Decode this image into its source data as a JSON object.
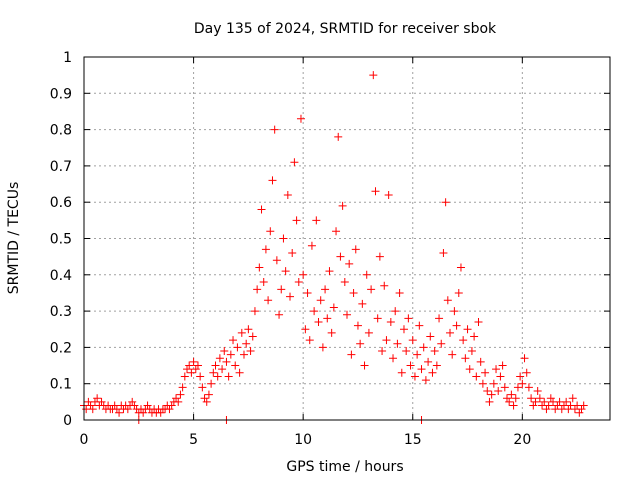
{
  "chart_data": {
    "type": "scatter",
    "title": "Day 135 of 2024, SRMTID for receiver sbok",
    "xlabel": "GPS time / hours",
    "ylabel": "SRMTID / TECUs",
    "xlim": [
      0,
      24
    ],
    "ylim": [
      0,
      1
    ],
    "xticks": [
      0,
      5,
      10,
      15,
      20
    ],
    "yticks": [
      0,
      0.1,
      0.2,
      0.3,
      0.4,
      0.5,
      0.6,
      0.7,
      0.8,
      0.9,
      1
    ],
    "grid": true,
    "marker": "+",
    "color": "#ff0000",
    "series": [
      {
        "name": "SRMTID",
        "points": [
          [
            0.0,
            0.04
          ],
          [
            0.1,
            0.03
          ],
          [
            0.2,
            0.05
          ],
          [
            0.3,
            0.04
          ],
          [
            0.4,
            0.03
          ],
          [
            0.5,
            0.05
          ],
          [
            0.6,
            0.06
          ],
          [
            0.7,
            0.04
          ],
          [
            0.8,
            0.05
          ],
          [
            0.9,
            0.04
          ],
          [
            1.0,
            0.03
          ],
          [
            1.1,
            0.04
          ],
          [
            1.2,
            0.03
          ],
          [
            1.3,
            0.03
          ],
          [
            1.4,
            0.04
          ],
          [
            1.5,
            0.03
          ],
          [
            1.6,
            0.02
          ],
          [
            1.7,
            0.04
          ],
          [
            1.8,
            0.03
          ],
          [
            1.9,
            0.04
          ],
          [
            2.0,
            0.03
          ],
          [
            2.1,
            0.04
          ],
          [
            2.2,
            0.05
          ],
          [
            2.3,
            0.04
          ],
          [
            2.4,
            0.03
          ],
          [
            2.5,
            0.02
          ],
          [
            2.6,
            0.03
          ],
          [
            2.7,
            0.02
          ],
          [
            2.8,
            0.03
          ],
          [
            2.9,
            0.04
          ],
          [
            3.0,
            0.03
          ],
          [
            3.1,
            0.02
          ],
          [
            3.2,
            0.03
          ],
          [
            3.3,
            0.02
          ],
          [
            3.4,
            0.03
          ],
          [
            3.5,
            0.02
          ],
          [
            3.6,
            0.03
          ],
          [
            3.7,
            0.03
          ],
          [
            3.8,
            0.04
          ],
          [
            3.9,
            0.03
          ],
          [
            4.0,
            0.04
          ],
          [
            4.1,
            0.05
          ],
          [
            4.2,
            0.06
          ],
          [
            4.3,
            0.05
          ],
          [
            4.4,
            0.07
          ],
          [
            4.5,
            0.09
          ],
          [
            4.6,
            0.12
          ],
          [
            4.7,
            0.14
          ],
          [
            4.8,
            0.15
          ],
          [
            4.9,
            0.13
          ],
          [
            5.0,
            0.16
          ],
          [
            5.1,
            0.14
          ],
          [
            5.2,
            0.15
          ],
          [
            5.3,
            0.12
          ],
          [
            5.4,
            0.09
          ],
          [
            5.5,
            0.06
          ],
          [
            5.6,
            0.05
          ],
          [
            5.7,
            0.07
          ],
          [
            5.8,
            0.1
          ],
          [
            5.9,
            0.13
          ],
          [
            6.0,
            0.15
          ],
          [
            6.1,
            0.12
          ],
          [
            6.2,
            0.17
          ],
          [
            6.3,
            0.14
          ],
          [
            6.4,
            0.19
          ],
          [
            6.5,
            0.16
          ],
          [
            6.6,
            0.12
          ],
          [
            6.7,
            0.18
          ],
          [
            6.8,
            0.22
          ],
          [
            6.9,
            0.15
          ],
          [
            7.0,
            0.2
          ],
          [
            7.1,
            0.13
          ],
          [
            7.2,
            0.24
          ],
          [
            7.3,
            0.18
          ],
          [
            7.4,
            0.21
          ],
          [
            7.5,
            0.25
          ],
          [
            7.6,
            0.19
          ],
          [
            7.7,
            0.23
          ],
          [
            7.8,
            0.3
          ],
          [
            7.9,
            0.36
          ],
          [
            8.0,
            0.42
          ],
          [
            8.1,
            0.58
          ],
          [
            8.2,
            0.38
          ],
          [
            8.3,
            0.47
          ],
          [
            8.4,
            0.33
          ],
          [
            8.5,
            0.52
          ],
          [
            8.6,
            0.66
          ],
          [
            8.7,
            0.8
          ],
          [
            8.8,
            0.44
          ],
          [
            8.9,
            0.29
          ],
          [
            9.0,
            0.36
          ],
          [
            9.1,
            0.5
          ],
          [
            9.2,
            0.41
          ],
          [
            9.3,
            0.62
          ],
          [
            9.4,
            0.34
          ],
          [
            9.5,
            0.46
          ],
          [
            9.6,
            0.71
          ],
          [
            9.7,
            0.55
          ],
          [
            9.8,
            0.38
          ],
          [
            9.9,
            0.83
          ],
          [
            10.0,
            0.4
          ],
          [
            10.1,
            0.25
          ],
          [
            10.2,
            0.35
          ],
          [
            10.3,
            0.22
          ],
          [
            10.4,
            0.48
          ],
          [
            10.5,
            0.3
          ],
          [
            10.6,
            0.55
          ],
          [
            10.7,
            0.27
          ],
          [
            10.8,
            0.33
          ],
          [
            10.9,
            0.2
          ],
          [
            11.0,
            0.36
          ],
          [
            11.1,
            0.28
          ],
          [
            11.2,
            0.41
          ],
          [
            11.3,
            0.24
          ],
          [
            11.4,
            0.31
          ],
          [
            11.5,
            0.52
          ],
          [
            11.6,
            0.78
          ],
          [
            11.7,
            0.45
          ],
          [
            11.8,
            0.59
          ],
          [
            11.9,
            0.38
          ],
          [
            12.0,
            0.29
          ],
          [
            12.1,
            0.43
          ],
          [
            12.2,
            0.18
          ],
          [
            12.3,
            0.35
          ],
          [
            12.4,
            0.47
          ],
          [
            12.5,
            0.26
          ],
          [
            12.6,
            0.21
          ],
          [
            12.7,
            0.32
          ],
          [
            12.8,
            0.15
          ],
          [
            12.9,
            0.4
          ],
          [
            13.0,
            0.24
          ],
          [
            13.1,
            0.36
          ],
          [
            13.2,
            0.95
          ],
          [
            13.3,
            0.63
          ],
          [
            13.4,
            0.28
          ],
          [
            13.5,
            0.45
          ],
          [
            13.6,
            0.19
          ],
          [
            13.7,
            0.37
          ],
          [
            13.8,
            0.22
          ],
          [
            13.9,
            0.62
          ],
          [
            14.0,
            0.27
          ],
          [
            14.1,
            0.17
          ],
          [
            14.2,
            0.3
          ],
          [
            14.3,
            0.21
          ],
          [
            14.4,
            0.35
          ],
          [
            14.5,
            0.13
          ],
          [
            14.6,
            0.25
          ],
          [
            14.7,
            0.19
          ],
          [
            14.8,
            0.28
          ],
          [
            14.9,
            0.15
          ],
          [
            15.0,
            0.22
          ],
          [
            15.1,
            0.12
          ],
          [
            15.2,
            0.18
          ],
          [
            15.3,
            0.26
          ],
          [
            15.4,
            0.14
          ],
          [
            15.5,
            0.2
          ],
          [
            15.6,
            0.11
          ],
          [
            15.7,
            0.16
          ],
          [
            15.8,
            0.23
          ],
          [
            15.9,
            0.13
          ],
          [
            16.0,
            0.19
          ],
          [
            16.1,
            0.15
          ],
          [
            16.2,
            0.28
          ],
          [
            16.3,
            0.21
          ],
          [
            16.4,
            0.46
          ],
          [
            16.5,
            0.6
          ],
          [
            16.6,
            0.33
          ],
          [
            16.7,
            0.24
          ],
          [
            16.8,
            0.18
          ],
          [
            16.9,
            0.3
          ],
          [
            17.0,
            0.26
          ],
          [
            17.1,
            0.35
          ],
          [
            17.2,
            0.42
          ],
          [
            17.3,
            0.22
          ],
          [
            17.4,
            0.17
          ],
          [
            17.5,
            0.25
          ],
          [
            17.6,
            0.14
          ],
          [
            17.7,
            0.19
          ],
          [
            17.8,
            0.23
          ],
          [
            17.9,
            0.12
          ],
          [
            18.0,
            0.27
          ],
          [
            18.1,
            0.16
          ],
          [
            18.2,
            0.1
          ],
          [
            18.3,
            0.13
          ],
          [
            18.4,
            0.08
          ],
          [
            18.5,
            0.05
          ],
          [
            18.6,
            0.07
          ],
          [
            18.7,
            0.1
          ],
          [
            18.8,
            0.14
          ],
          [
            18.9,
            0.08
          ],
          [
            19.0,
            0.12
          ],
          [
            19.1,
            0.15
          ],
          [
            19.2,
            0.09
          ],
          [
            19.3,
            0.06
          ],
          [
            19.4,
            0.05
          ],
          [
            19.5,
            0.07
          ],
          [
            19.6,
            0.04
          ],
          [
            19.7,
            0.06
          ],
          [
            19.8,
            0.09
          ],
          [
            19.9,
            0.12
          ],
          [
            20.0,
            0.1
          ],
          [
            20.1,
            0.17
          ],
          [
            20.2,
            0.13
          ],
          [
            20.3,
            0.09
          ],
          [
            20.4,
            0.06
          ],
          [
            20.5,
            0.04
          ],
          [
            20.6,
            0.05
          ],
          [
            20.7,
            0.08
          ],
          [
            20.8,
            0.06
          ],
          [
            20.9,
            0.04
          ],
          [
            21.0,
            0.05
          ],
          [
            21.1,
            0.03
          ],
          [
            21.2,
            0.04
          ],
          [
            21.3,
            0.06
          ],
          [
            21.4,
            0.05
          ],
          [
            21.5,
            0.03
          ],
          [
            21.6,
            0.04
          ],
          [
            21.7,
            0.05
          ],
          [
            21.8,
            0.03
          ],
          [
            21.9,
            0.04
          ],
          [
            22.0,
            0.05
          ],
          [
            22.1,
            0.03
          ],
          [
            22.2,
            0.04
          ],
          [
            22.3,
            0.06
          ],
          [
            22.4,
            0.03
          ],
          [
            22.5,
            0.04
          ],
          [
            22.6,
            0.02
          ],
          [
            22.7,
            0.03
          ],
          [
            22.8,
            0.04
          ],
          [
            2.5,
            0.0
          ],
          [
            6.5,
            0.0
          ],
          [
            15.4,
            0.0
          ]
        ]
      }
    ]
  }
}
